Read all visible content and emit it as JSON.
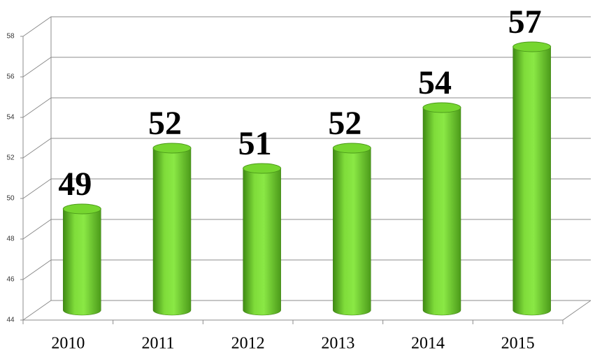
{
  "chart_data": {
    "type": "bar",
    "categories": [
      "2010",
      "2011",
      "2012",
      "2013",
      "2014",
      "2015"
    ],
    "values": [
      49,
      52,
      51,
      52,
      54,
      57
    ],
    "color": "#76d630",
    "ylim": [
      44,
      58
    ],
    "yticks": [
      44,
      46,
      48,
      50,
      52,
      54,
      56,
      58
    ],
    "grid": true
  }
}
